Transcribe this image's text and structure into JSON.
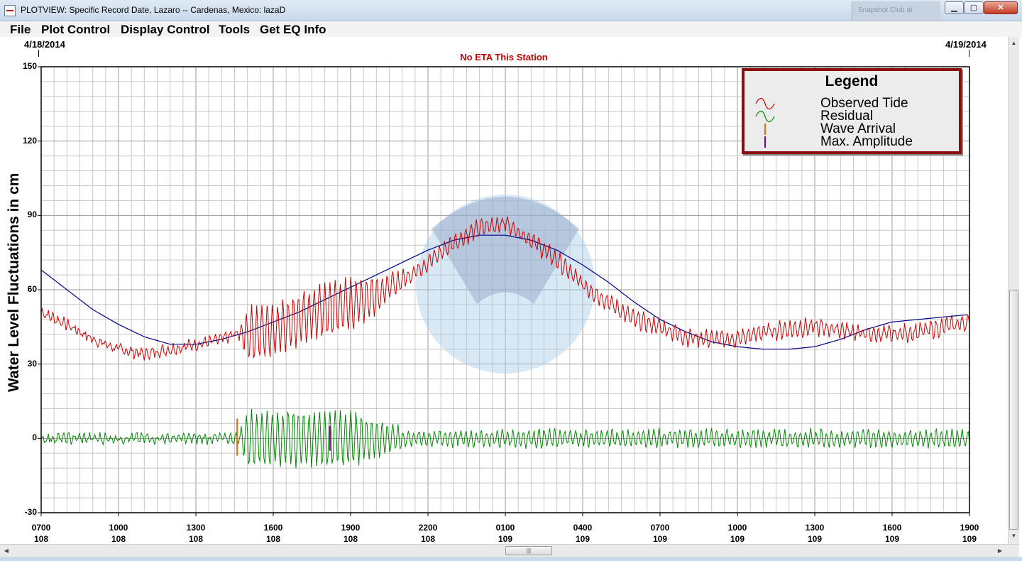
{
  "window": {
    "title": "PLOTVIEW: Specific Record Date, Lazaro -- Cardenas, Mexico: lazaD",
    "background_window_title": "Snapshot Club at",
    "minimize_glyph": "▁",
    "maximize_glyph": "▢",
    "close_glyph": "✕"
  },
  "menu": {
    "items": [
      "File",
      "Plot Control",
      "Display Control",
      "Tools",
      "Get EQ Info"
    ]
  },
  "header": {
    "date_start": "4/18/2014",
    "date_end": "4/19/2014",
    "eta_message": "No ETA This Station"
  },
  "colors": {
    "observed_tide": "#cc0000",
    "residual": "#008800",
    "predicted_tide": "#00008b",
    "wave_arrival": "#ff6600",
    "max_amplitude": "#8b008b",
    "legend_border": "#8b0d0d"
  },
  "legend": {
    "title": "Legend",
    "items": [
      {
        "label": "Observed Tide",
        "symbol": "wave-red-icon"
      },
      {
        "label": "Residual",
        "symbol": "wave-green-icon"
      },
      {
        "label": "Wave Arrival",
        "symbol": "tick-orange-icon"
      },
      {
        "label": "Max. Amplitude",
        "symbol": "tick-purple-icon"
      }
    ]
  },
  "chart_data": {
    "type": "line",
    "title": "No ETA This Station",
    "ylabel": "Water Level Fluctuations in cm",
    "xlabel": "",
    "ylim": [
      -30,
      150
    ],
    "yticks": [
      -30,
      0,
      30,
      60,
      90,
      120,
      150
    ],
    "x_unit": "hours since 0700 day 108",
    "xlim": [
      0,
      36
    ],
    "xticks": [
      {
        "time": "0700",
        "day": "108"
      },
      {
        "time": "1000",
        "day": "108"
      },
      {
        "time": "1300",
        "day": "108"
      },
      {
        "time": "1600",
        "day": "108"
      },
      {
        "time": "1900",
        "day": "108"
      },
      {
        "time": "2200",
        "day": "108"
      },
      {
        "time": "0100",
        "day": "109"
      },
      {
        "time": "0400",
        "day": "109"
      },
      {
        "time": "0700",
        "day": "109"
      },
      {
        "time": "1000",
        "day": "109"
      },
      {
        "time": "1300",
        "day": "109"
      },
      {
        "time": "1600",
        "day": "109"
      },
      {
        "time": "1900",
        "day": "109"
      }
    ],
    "grid": true,
    "legend_position": "top-right",
    "series": [
      {
        "name": "Predicted Tide",
        "x": [
          0,
          2,
          3,
          4,
          5,
          6,
          7,
          8,
          9,
          10,
          11,
          12,
          13,
          14,
          15,
          16,
          17,
          18,
          19,
          20,
          21,
          22,
          23,
          24,
          25,
          26,
          27,
          28,
          29,
          30,
          31,
          32,
          33,
          34,
          35,
          36
        ],
        "values": [
          68,
          52,
          46,
          41,
          38,
          38,
          40,
          43,
          47,
          51,
          56,
          61,
          66,
          71,
          76,
          80,
          82,
          82,
          80,
          76,
          70,
          63,
          55,
          48,
          43,
          39,
          37,
          36,
          36,
          37,
          40,
          44,
          47,
          48,
          49,
          50
        ]
      },
      {
        "name": "Observed Tide",
        "x": [
          0,
          1,
          2,
          3,
          4,
          5,
          6,
          7,
          7.5,
          8,
          9,
          10,
          11,
          12,
          13,
          14,
          15,
          16,
          17,
          18,
          19,
          20,
          21,
          22,
          23,
          24,
          25,
          26,
          27,
          28,
          29,
          30,
          31,
          32,
          33,
          34,
          35,
          36
        ],
        "values": [
          51,
          46,
          40,
          36,
          34,
          36,
          38,
          40,
          42,
          42,
          44,
          48,
          52,
          54,
          58,
          64,
          71,
          79,
          85,
          87,
          80,
          72,
          62,
          55,
          48,
          45,
          41,
          40,
          40,
          43,
          44,
          45,
          44,
          42,
          42,
          43,
          45,
          47
        ],
        "noise_note": "oscillation amplitude largest between 1530 and 1900 day 108"
      },
      {
        "name": "Residual",
        "x": [
          0,
          7.5,
          8,
          9,
          10,
          11,
          12,
          18,
          24,
          30,
          36
        ],
        "values": [
          0,
          0,
          0,
          0,
          0,
          0,
          0,
          0,
          0,
          0,
          0
        ],
        "amplitude": [
          2,
          2,
          13,
          12,
          12,
          6,
          4,
          4,
          4,
          3,
          3
        ]
      }
    ],
    "markers": [
      {
        "name": "Wave Arrival",
        "x": 7.6,
        "y_range": [
          -7,
          8
        ]
      },
      {
        "name": "Max. Amplitude",
        "x": 11.2,
        "y_range": [
          -5,
          5
        ]
      }
    ]
  }
}
